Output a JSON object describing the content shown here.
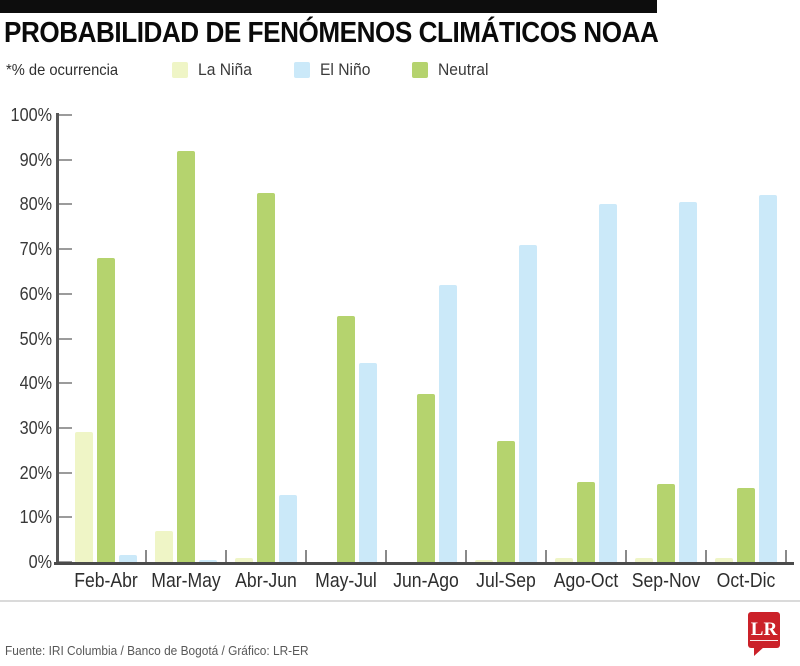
{
  "title": "PROBABILIDAD DE FENÓMENOS CLIMÁTICOS NOAA",
  "subtitle": "*% de ocurrencia",
  "legend": [
    {
      "label": "La Niña",
      "color": "#eff5c6"
    },
    {
      "label": "El Niño",
      "color": "#cbe9f9"
    },
    {
      "label": "Neutral",
      "color": "#b5d36e"
    }
  ],
  "footer": {
    "source": "Fuente: IRI Columbia / Banco de Bogotá / Gráfico: LR-ER",
    "logo": "LR",
    "logo_color": "#cb2129"
  },
  "chart_data": {
    "type": "bar",
    "title": "PROBABILIDAD DE FENÓMENOS CLIMÁTICOS NOAA",
    "xlabel": "",
    "ylabel": "% de ocurrencia",
    "ylim": [
      0,
      100
    ],
    "y_ticks": [
      "0%",
      "10%",
      "20%",
      "30%",
      "40%",
      "50%",
      "60%",
      "70%",
      "80%",
      "90%",
      "100%"
    ],
    "grid": false,
    "legend_position": "top",
    "categories": [
      "Feb-Abr",
      "Mar-May",
      "Abr-Jun",
      "May-Jul",
      "Jun-Ago",
      "Jul-Sep",
      "Ago-Oct",
      "Sep-Nov",
      "Oct-Dic"
    ],
    "series": [
      {
        "name": "La Niña",
        "color": "#eff5c6",
        "values": [
          29,
          7,
          1,
          0,
          0,
          0.5,
          1,
          1,
          1
        ]
      },
      {
        "name": "Neutral",
        "color": "#b5d36e",
        "values": [
          68,
          92,
          82.5,
          55,
          37.5,
          27,
          18,
          17.5,
          16.5
        ]
      },
      {
        "name": "El Niño",
        "color": "#cbe9f9",
        "values": [
          1.5,
          0.5,
          15,
          44.5,
          62,
          71,
          80,
          80.5,
          82
        ]
      }
    ],
    "bar_order_in_group": [
      "La Niña",
      "Neutral",
      "El Niño"
    ],
    "axis_colors": {
      "axis": "#565656",
      "tick": "#9b9b9b",
      "label": "#383838"
    }
  }
}
